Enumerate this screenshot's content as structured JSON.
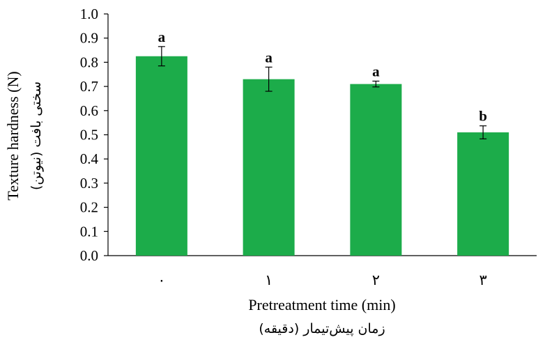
{
  "chart_data": {
    "type": "bar",
    "categories": [
      "٠",
      "١",
      "٢",
      "٣"
    ],
    "values": [
      0.825,
      0.73,
      0.71,
      0.51
    ],
    "errors": [
      0.04,
      0.05,
      0.012,
      0.027
    ],
    "significance": [
      "a",
      "a",
      "a",
      "b"
    ],
    "bar_color": "#1cac4a",
    "ylim": [
      0,
      1.0
    ],
    "ytick_step": 0.1,
    "yticks": [
      "0.0",
      "0.1",
      "0.2",
      "0.3",
      "0.4",
      "0.5",
      "0.6",
      "0.7",
      "0.8",
      "0.9",
      "1.0"
    ],
    "ylabel": "Texture hardness (N)",
    "ylabel_fa": "سختی بافت (نیوتن)",
    "xlabel": "Pretreatment time (min)",
    "xlabel_fa": "زمان پیش‌تیمار (دقیقه)",
    "grid": false,
    "legend": "none"
  }
}
